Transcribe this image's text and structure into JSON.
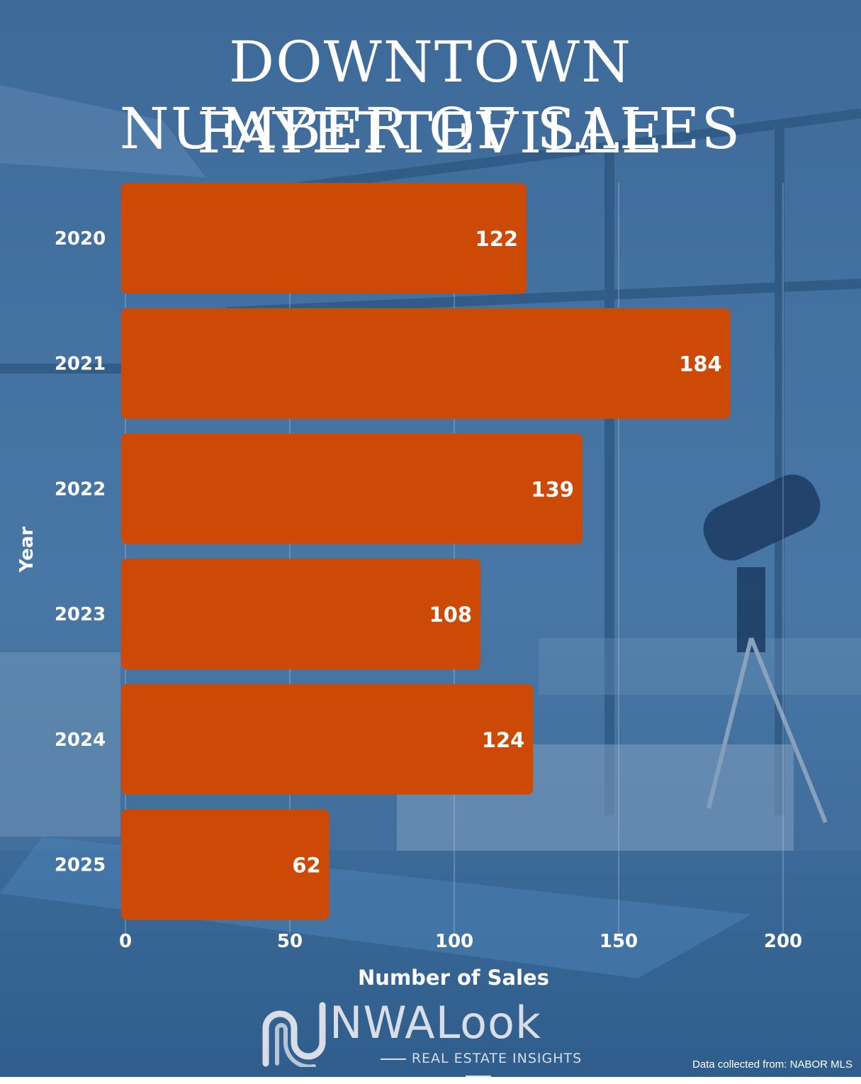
{
  "title_line1": "DOWNTOWN FAYETTEVILLE",
  "title_line2": "NUMBER OF SALES",
  "colors": {
    "background": "#3f6e9e",
    "bar": "#cc4a05",
    "text": "#ffffff",
    "gridline": "#c9d7e6"
  },
  "chart_data": {
    "type": "bar",
    "orientation": "horizontal",
    "categories": [
      "2020",
      "2021",
      "2022",
      "2023",
      "2024",
      "2025"
    ],
    "values": [
      122,
      184,
      139,
      108,
      124,
      62
    ],
    "xlabel": "Number of Sales",
    "ylabel": "Year",
    "xlim": [
      0,
      200
    ],
    "xticks": [
      0,
      50,
      100,
      150,
      200
    ],
    "grid": "vertical",
    "data_labels": true
  },
  "logo": {
    "icon": "nwalook-logo-icon",
    "name": "NWALook",
    "tagline": "REAL ESTATE INSIGHTS"
  },
  "source": "Data collected from: NABOR MLS"
}
